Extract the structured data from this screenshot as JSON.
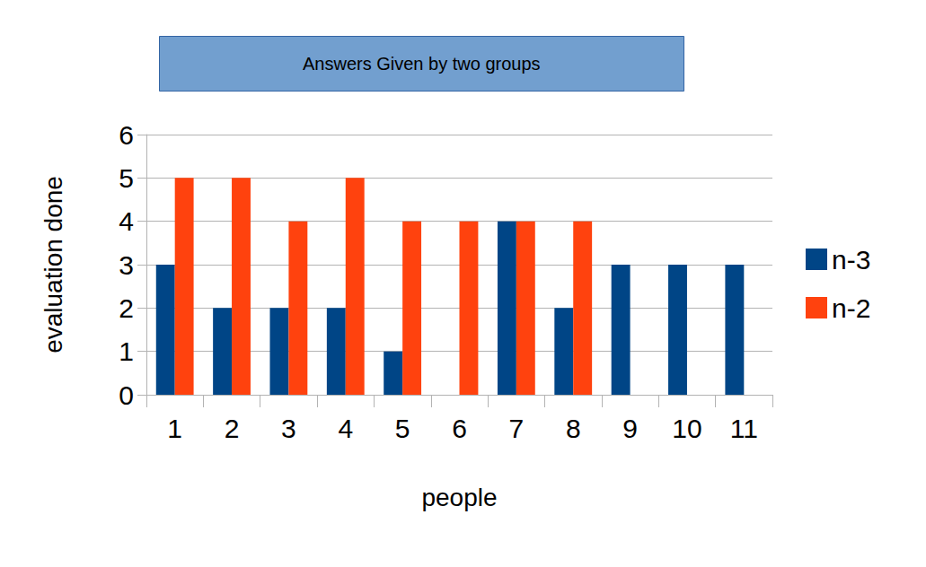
{
  "chart_data": {
    "type": "bar",
    "title": "Answers Given by two groups",
    "x_label": "people",
    "y_label": "evaluation done",
    "categories": [
      "1",
      "2",
      "3",
      "4",
      "5",
      "6",
      "7",
      "8",
      "9",
      "10",
      "11"
    ],
    "series": [
      {
        "name": "n-3",
        "color": "#004586",
        "values": [
          3,
          2,
          2,
          2,
          1,
          0,
          4,
          2,
          3,
          3,
          3
        ]
      },
      {
        "name": "n-2",
        "color": "#ff420e",
        "values": [
          5,
          5,
          4,
          5,
          4,
          4,
          4,
          4,
          0,
          0,
          0
        ]
      }
    ],
    "ylim": [
      0,
      6
    ],
    "yticks": [
      0,
      1,
      2,
      3,
      4,
      5,
      6
    ],
    "grid": true,
    "legend": "right"
  }
}
